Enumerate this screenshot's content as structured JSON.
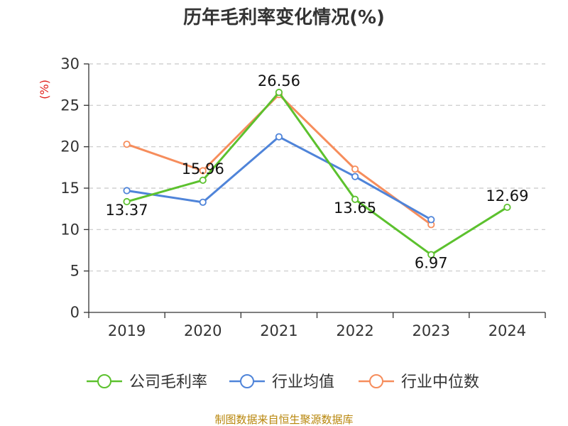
{
  "chart_data": {
    "type": "line",
    "title": "历年毛利率变化情况(%)",
    "ylabel": "(%)",
    "xlabel": "",
    "categories": [
      "2019",
      "2020",
      "2021",
      "2022",
      "2023",
      "2024"
    ],
    "ylim": [
      0,
      30
    ],
    "yticks": [
      0,
      5,
      10,
      15,
      20,
      25,
      30
    ],
    "grid": "horizontal dashed",
    "legend_position": "bottom",
    "series": [
      {
        "name": "公司毛利率",
        "color": "#5cc12e",
        "values": [
          13.37,
          15.96,
          26.56,
          13.65,
          6.97,
          12.69
        ],
        "labels": [
          "13.37",
          "15.96",
          "26.56",
          "13.65",
          "6.97",
          "12.69"
        ]
      },
      {
        "name": "行业均值",
        "color": "#4f84d9",
        "values": [
          14.7,
          13.3,
          21.2,
          16.4,
          11.2,
          null
        ]
      },
      {
        "name": "行业中位数",
        "color": "#f68d5c",
        "values": [
          20.3,
          17.1,
          26.3,
          17.3,
          10.6,
          null
        ]
      }
    ],
    "source": "制图数据来自恒生聚源数据库"
  }
}
